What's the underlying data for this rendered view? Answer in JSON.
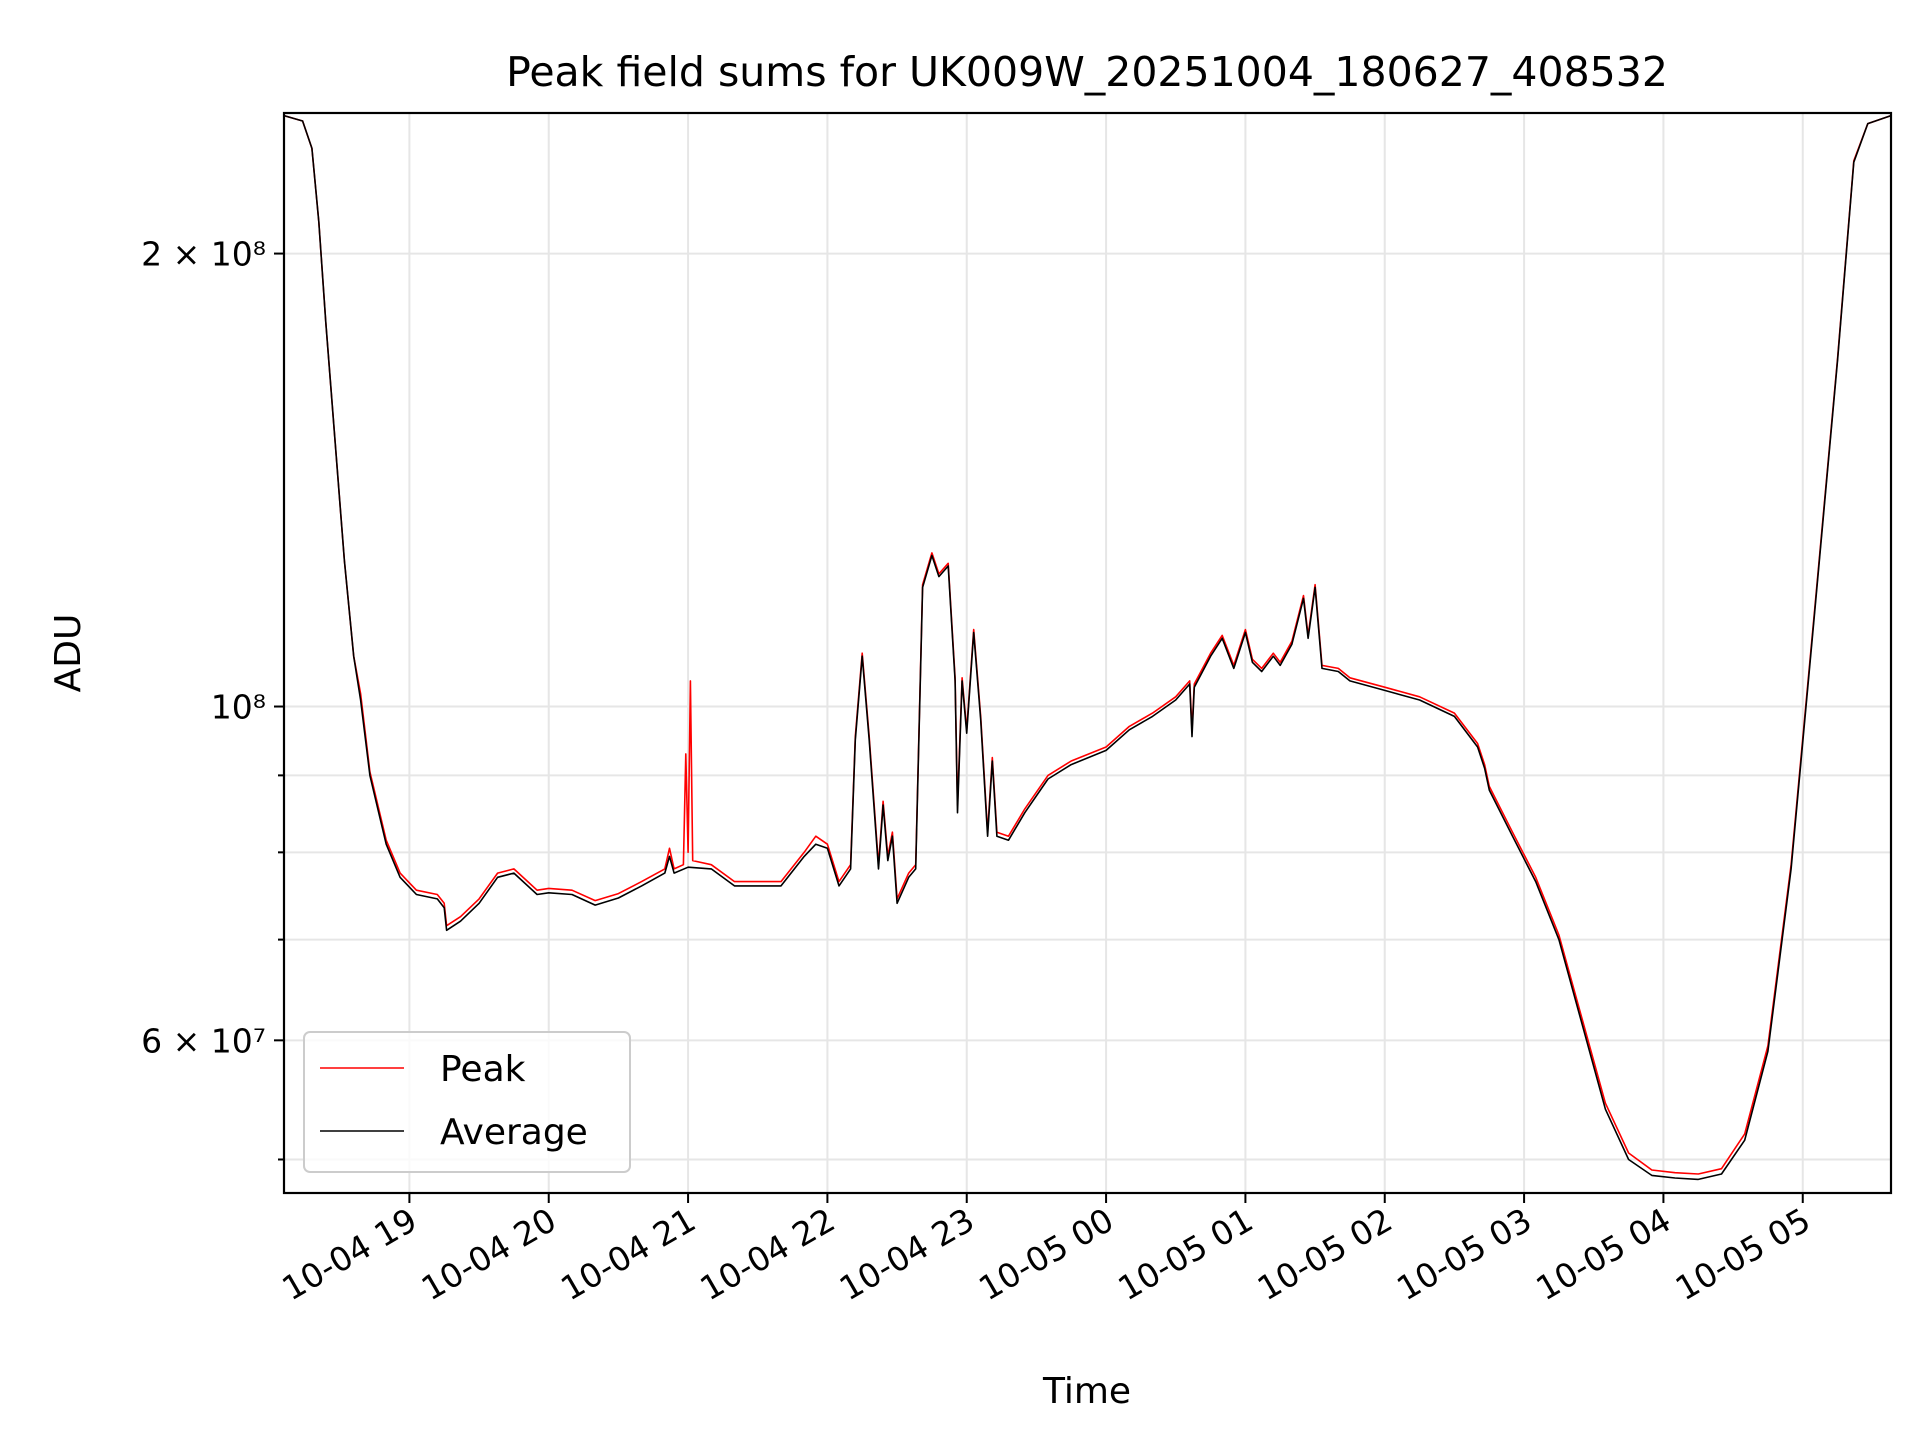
{
  "chart_data": {
    "type": "line",
    "title": "Peak field sums for UK009W_20251004_180627_408532",
    "xlabel": "Time",
    "ylabel": "ADU",
    "yscale": "log",
    "xlim": [
      "2025-10-04 18:06",
      "2025-10-05 05:38"
    ],
    "ylim": [
      47500000,
      248000000
    ],
    "x_ticks": [
      "2025-10-04 19:00",
      "2025-10-04 20:00",
      "2025-10-04 21:00",
      "2025-10-04 22:00",
      "2025-10-04 23:00",
      "2025-10-05 00:00",
      "2025-10-05 01:00",
      "2025-10-05 02:00",
      "2025-10-05 03:00",
      "2025-10-05 04:00",
      "2025-10-05 05:00"
    ],
    "x_tick_labels": [
      "10-04 19",
      "10-04 20",
      "10-04 21",
      "10-04 22",
      "10-04 23",
      "10-05 00",
      "10-05 01",
      "10-05 02",
      "10-05 03",
      "10-05 04",
      "10-05 05"
    ],
    "y_major_ticks": [
      60000000,
      100000000,
      200000000
    ],
    "y_tick_labels": [
      "6 × 10⁷",
      "10⁸",
      "2 × 10⁸"
    ],
    "y_minor_ticks": [
      50000000,
      70000000,
      80000000,
      90000000
    ],
    "grid": true,
    "legend": {
      "position": "lower-left",
      "entries": [
        "Peak",
        "Average"
      ]
    },
    "series": [
      {
        "name": "Average",
        "color": "#000000",
        "points": [
          [
            "2025-10-04 18:06",
            247000000
          ],
          [
            "2025-10-04 18:14",
            245000000
          ],
          [
            "2025-10-04 18:18",
            235000000
          ],
          [
            "2025-10-04 18:21",
            210000000
          ],
          [
            "2025-10-04 18:24",
            180000000
          ],
          [
            "2025-10-04 18:28",
            150000000
          ],
          [
            "2025-10-04 18:32",
            125000000
          ],
          [
            "2025-10-04 18:36",
            108000000
          ],
          [
            "2025-10-04 18:39",
            101000000
          ],
          [
            "2025-10-04 18:43",
            90000000
          ],
          [
            "2025-10-04 18:50",
            81000000
          ],
          [
            "2025-10-04 18:56",
            77000000
          ],
          [
            "2025-10-04 19:03",
            75000000
          ],
          [
            "2025-10-04 19:12",
            74500000
          ],
          [
            "2025-10-04 19:15",
            73500000
          ],
          [
            "2025-10-04 19:16",
            71000000
          ],
          [
            "2025-10-04 19:22",
            72000000
          ],
          [
            "2025-10-04 19:30",
            74000000
          ],
          [
            "2025-10-04 19:38",
            77000000
          ],
          [
            "2025-10-04 19:45",
            77500000
          ],
          [
            "2025-10-04 19:55",
            75000000
          ],
          [
            "2025-10-04 20:00",
            75200000
          ],
          [
            "2025-10-04 20:10",
            75000000
          ],
          [
            "2025-10-04 20:20",
            73800000
          ],
          [
            "2025-10-04 20:30",
            74600000
          ],
          [
            "2025-10-04 20:40",
            76000000
          ],
          [
            "2025-10-04 20:50",
            77500000
          ],
          [
            "2025-10-04 20:52",
            79500000
          ],
          [
            "2025-10-04 20:54",
            77500000
          ],
          [
            "2025-10-04 21:00",
            78200000
          ],
          [
            "2025-10-04 21:10",
            78000000
          ],
          [
            "2025-10-04 21:20",
            76000000
          ],
          [
            "2025-10-04 21:40",
            76000000
          ],
          [
            "2025-10-04 21:50",
            79500000
          ],
          [
            "2025-10-04 21:55",
            81000000
          ],
          [
            "2025-10-04 22:00",
            80500000
          ],
          [
            "2025-10-04 22:05",
            76000000
          ],
          [
            "2025-10-04 22:10",
            78000000
          ],
          [
            "2025-10-04 22:12",
            95000000
          ],
          [
            "2025-10-04 22:15",
            108000000
          ],
          [
            "2025-10-04 22:18",
            95000000
          ],
          [
            "2025-10-04 22:20",
            86000000
          ],
          [
            "2025-10-04 22:22",
            78000000
          ],
          [
            "2025-10-04 22:24",
            86000000
          ],
          [
            "2025-10-04 22:26",
            79000000
          ],
          [
            "2025-10-04 22:28",
            82000000
          ],
          [
            "2025-10-04 22:30",
            74000000
          ],
          [
            "2025-10-04 22:35",
            77000000
          ],
          [
            "2025-10-04 22:38",
            78000000
          ],
          [
            "2025-10-04 22:41",
            120000000
          ],
          [
            "2025-10-04 22:45",
            126000000
          ],
          [
            "2025-10-04 22:48",
            122000000
          ],
          [
            "2025-10-04 22:52",
            124000000
          ],
          [
            "2025-10-04 22:55",
            104000000
          ],
          [
            "2025-10-04 22:56",
            85000000
          ],
          [
            "2025-10-04 22:58",
            104000000
          ],
          [
            "2025-10-04 23:00",
            96000000
          ],
          [
            "2025-10-04 23:03",
            112000000
          ],
          [
            "2025-10-04 23:06",
            98000000
          ],
          [
            "2025-10-04 23:09",
            82000000
          ],
          [
            "2025-10-04 23:11",
            92000000
          ],
          [
            "2025-10-04 23:13",
            82000000
          ],
          [
            "2025-10-04 23:18",
            81500000
          ],
          [
            "2025-10-04 23:25",
            85000000
          ],
          [
            "2025-10-04 23:35",
            89500000
          ],
          [
            "2025-10-04 23:45",
            91500000
          ],
          [
            "2025-10-05 00:00",
            93500000
          ],
          [
            "2025-10-05 00:10",
            96500000
          ],
          [
            "2025-10-05 00:20",
            98500000
          ],
          [
            "2025-10-05 00:30",
            101000000
          ],
          [
            "2025-10-05 00:36",
            103500000
          ],
          [
            "2025-10-05 00:37",
            95500000
          ],
          [
            "2025-10-05 00:38",
            103000000
          ],
          [
            "2025-10-05 00:45",
            108000000
          ],
          [
            "2025-10-05 00:50",
            111000000
          ],
          [
            "2025-10-05 00:55",
            106000000
          ],
          [
            "2025-10-05 01:00",
            112000000
          ],
          [
            "2025-10-05 01:03",
            107000000
          ],
          [
            "2025-10-05 01:07",
            105500000
          ],
          [
            "2025-10-05 01:12",
            108000000
          ],
          [
            "2025-10-05 01:15",
            106500000
          ],
          [
            "2025-10-05 01:20",
            110000000
          ],
          [
            "2025-10-05 01:25",
            118000000
          ],
          [
            "2025-10-05 01:27",
            111000000
          ],
          [
            "2025-10-05 01:30",
            120000000
          ],
          [
            "2025-10-05 01:33",
            106000000
          ],
          [
            "2025-10-05 01:40",
            105500000
          ],
          [
            "2025-10-05 01:45",
            104000000
          ],
          [
            "2025-10-05 02:00",
            102500000
          ],
          [
            "2025-10-05 02:15",
            101000000
          ],
          [
            "2025-10-05 02:30",
            98500000
          ],
          [
            "2025-10-05 02:40",
            94000000
          ],
          [
            "2025-10-05 02:43",
            91000000
          ],
          [
            "2025-10-05 02:45",
            88000000
          ],
          [
            "2025-10-05 02:55",
            82000000
          ],
          [
            "2025-10-05 03:05",
            76500000
          ],
          [
            "2025-10-05 03:15",
            70000000
          ],
          [
            "2025-10-05 03:25",
            61500000
          ],
          [
            "2025-10-05 03:35",
            54000000
          ],
          [
            "2025-10-05 03:45",
            50000000
          ],
          [
            "2025-10-05 03:55",
            48800000
          ],
          [
            "2025-10-05 04:05",
            48600000
          ],
          [
            "2025-10-05 04:15",
            48500000
          ],
          [
            "2025-10-05 04:25",
            48900000
          ],
          [
            "2025-10-05 04:35",
            51500000
          ],
          [
            "2025-10-05 04:45",
            59000000
          ],
          [
            "2025-10-05 04:55",
            78000000
          ],
          [
            "2025-10-05 05:05",
            115000000
          ],
          [
            "2025-10-05 05:15",
            170000000
          ],
          [
            "2025-10-05 05:22",
            230000000
          ],
          [
            "2025-10-05 05:28",
            244000000
          ],
          [
            "2025-10-05 05:38",
            247000000
          ]
        ]
      },
      {
        "name": "Peak",
        "color": "#ff0000",
        "points": [
          [
            "2025-10-04 18:06",
            247000000
          ],
          [
            "2025-10-04 18:14",
            245000000
          ],
          [
            "2025-10-04 18:18",
            235000000
          ],
          [
            "2025-10-04 18:21",
            210000000
          ],
          [
            "2025-10-04 18:24",
            180000000
          ],
          [
            "2025-10-04 18:28",
            150000000
          ],
          [
            "2025-10-04 18:32",
            125000000
          ],
          [
            "2025-10-04 18:36",
            108000000
          ],
          [
            "2025-10-04 18:39",
            102000000
          ],
          [
            "2025-10-04 18:43",
            90500000
          ],
          [
            "2025-10-04 18:50",
            81500000
          ],
          [
            "2025-10-04 18:56",
            77500000
          ],
          [
            "2025-10-04 19:03",
            75500000
          ],
          [
            "2025-10-04 19:12",
            75000000
          ],
          [
            "2025-10-04 19:15",
            74000000
          ],
          [
            "2025-10-04 19:16",
            71500000
          ],
          [
            "2025-10-04 19:22",
            72500000
          ],
          [
            "2025-10-04 19:30",
            74500000
          ],
          [
            "2025-10-04 19:38",
            77500000
          ],
          [
            "2025-10-04 19:45",
            78000000
          ],
          [
            "2025-10-04 19:55",
            75500000
          ],
          [
            "2025-10-04 20:00",
            75700000
          ],
          [
            "2025-10-04 20:10",
            75500000
          ],
          [
            "2025-10-04 20:20",
            74300000
          ],
          [
            "2025-10-04 20:30",
            75100000
          ],
          [
            "2025-10-04 20:40",
            76500000
          ],
          [
            "2025-10-04 20:50",
            78000000
          ],
          [
            "2025-10-04 20:52",
            80500000
          ],
          [
            "2025-10-04 20:54",
            78000000
          ],
          [
            "2025-10-04 20:58",
            78500000
          ],
          [
            "2025-10-04 20:59",
            93000000
          ],
          [
            "2025-10-04 21:00",
            80000000
          ],
          [
            "2025-10-04 21:01",
            104000000
          ],
          [
            "2025-10-04 21:02",
            79000000
          ],
          [
            "2025-10-04 21:10",
            78500000
          ],
          [
            "2025-10-04 21:20",
            76500000
          ],
          [
            "2025-10-04 21:40",
            76500000
          ],
          [
            "2025-10-04 21:50",
            80000000
          ],
          [
            "2025-10-04 21:55",
            82000000
          ],
          [
            "2025-10-04 22:00",
            81000000
          ],
          [
            "2025-10-04 22:05",
            76500000
          ],
          [
            "2025-10-04 22:10",
            78500000
          ],
          [
            "2025-10-04 22:12",
            95500000
          ],
          [
            "2025-10-04 22:15",
            108500000
          ],
          [
            "2025-10-04 22:18",
            95500000
          ],
          [
            "2025-10-04 22:20",
            86500000
          ],
          [
            "2025-10-04 22:22",
            78500000
          ],
          [
            "2025-10-04 22:24",
            86500000
          ],
          [
            "2025-10-04 22:26",
            79500000
          ],
          [
            "2025-10-04 22:28",
            82500000
          ],
          [
            "2025-10-04 22:30",
            74500000
          ],
          [
            "2025-10-04 22:35",
            77500000
          ],
          [
            "2025-10-04 22:38",
            78500000
          ],
          [
            "2025-10-04 22:41",
            120500000
          ],
          [
            "2025-10-04 22:45",
            126500000
          ],
          [
            "2025-10-04 22:48",
            122500000
          ],
          [
            "2025-10-04 22:52",
            124500000
          ],
          [
            "2025-10-04 22:55",
            104500000
          ],
          [
            "2025-10-04 22:56",
            86000000
          ],
          [
            "2025-10-04 22:58",
            104500000
          ],
          [
            "2025-10-04 23:00",
            96500000
          ],
          [
            "2025-10-04 23:03",
            112500000
          ],
          [
            "2025-10-04 23:06",
            98500000
          ],
          [
            "2025-10-04 23:09",
            82500000
          ],
          [
            "2025-10-04 23:11",
            92500000
          ],
          [
            "2025-10-04 23:13",
            82500000
          ],
          [
            "2025-10-04 23:18",
            82000000
          ],
          [
            "2025-10-04 23:25",
            85500000
          ],
          [
            "2025-10-04 23:35",
            90000000
          ],
          [
            "2025-10-04 23:45",
            92000000
          ],
          [
            "2025-10-05 00:00",
            94000000
          ],
          [
            "2025-10-05 00:10",
            97000000
          ],
          [
            "2025-10-05 00:20",
            99000000
          ],
          [
            "2025-10-05 00:30",
            101500000
          ],
          [
            "2025-10-05 00:36",
            104000000
          ],
          [
            "2025-10-05 00:37",
            96500000
          ],
          [
            "2025-10-05 00:38",
            103500000
          ],
          [
            "2025-10-05 00:45",
            108500000
          ],
          [
            "2025-10-05 00:50",
            111500000
          ],
          [
            "2025-10-05 00:55",
            106500000
          ],
          [
            "2025-10-05 01:00",
            112500000
          ],
          [
            "2025-10-05 01:03",
            107500000
          ],
          [
            "2025-10-05 01:07",
            106000000
          ],
          [
            "2025-10-05 01:12",
            108500000
          ],
          [
            "2025-10-05 01:15",
            107000000
          ],
          [
            "2025-10-05 01:20",
            110500000
          ],
          [
            "2025-10-05 01:25",
            118500000
          ],
          [
            "2025-10-05 01:27",
            111500000
          ],
          [
            "2025-10-05 01:30",
            120500000
          ],
          [
            "2025-10-05 01:33",
            106500000
          ],
          [
            "2025-10-05 01:40",
            106000000
          ],
          [
            "2025-10-05 01:45",
            104500000
          ],
          [
            "2025-10-05 02:00",
            103000000
          ],
          [
            "2025-10-05 02:15",
            101500000
          ],
          [
            "2025-10-05 02:30",
            99000000
          ],
          [
            "2025-10-05 02:40",
            94500000
          ],
          [
            "2025-10-05 02:43",
            91500000
          ],
          [
            "2025-10-05 02:45",
            88500000
          ],
          [
            "2025-10-05 02:55",
            82500000
          ],
          [
            "2025-10-05 03:05",
            77000000
          ],
          [
            "2025-10-05 03:15",
            70500000
          ],
          [
            "2025-10-05 03:25",
            62000000
          ],
          [
            "2025-10-05 03:35",
            54500000
          ],
          [
            "2025-10-05 03:45",
            50500000
          ],
          [
            "2025-10-05 03:55",
            49200000
          ],
          [
            "2025-10-05 04:05",
            49000000
          ],
          [
            "2025-10-05 04:15",
            48900000
          ],
          [
            "2025-10-05 04:25",
            49300000
          ],
          [
            "2025-10-05 04:35",
            52000000
          ],
          [
            "2025-10-05 04:45",
            59500000
          ],
          [
            "2025-10-05 04:55",
            78500000
          ],
          [
            "2025-10-05 05:05",
            115500000
          ],
          [
            "2025-10-05 05:15",
            170500000
          ],
          [
            "2025-10-05 05:22",
            230500000
          ],
          [
            "2025-10-05 05:28",
            244000000
          ],
          [
            "2025-10-05 05:38",
            247000000
          ]
        ]
      }
    ]
  }
}
